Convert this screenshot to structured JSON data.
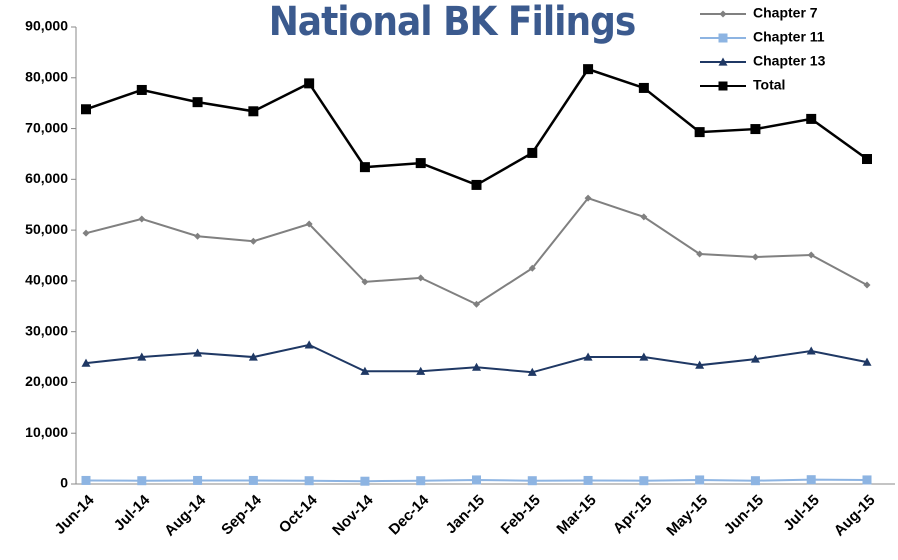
{
  "chart_data": {
    "type": "line",
    "title": "National BK Filings",
    "categories": [
      "Jun-14",
      "Jul-14",
      "Aug-14",
      "Sep-14",
      "Oct-14",
      "Nov-14",
      "Dec-14",
      "Jan-15",
      "Feb-15",
      "Mar-15",
      "Apr-15",
      "May-15",
      "Jun-15",
      "Jul-15",
      "Aug-15"
    ],
    "series": [
      {
        "name": "Chapter 7",
        "color": "#808080",
        "marker": "diamond",
        "values": [
          49400,
          52200,
          48800,
          47800,
          51200,
          39800,
          40600,
          35400,
          42500,
          56300,
          52600,
          45300,
          44700,
          45100,
          39200
        ]
      },
      {
        "name": "Chapter 11",
        "color": "#8db4e2",
        "marker": "square",
        "values": [
          700,
          650,
          700,
          700,
          650,
          550,
          650,
          800,
          650,
          700,
          650,
          800,
          650,
          850,
          800
        ]
      },
      {
        "name": "Chapter 13",
        "color": "#1f3864",
        "marker": "triangle",
        "values": [
          23800,
          25000,
          25800,
          25000,
          27400,
          22200,
          22200,
          23000,
          22000,
          25000,
          25000,
          23400,
          24600,
          26200,
          24000
        ]
      },
      {
        "name": "Total",
        "color": "#000000",
        "marker": "square",
        "values": [
          73800,
          77600,
          75200,
          73400,
          78900,
          62400,
          63200,
          58900,
          65200,
          81700,
          78000,
          69300,
          69900,
          71900,
          64000
        ]
      }
    ],
    "ylim": [
      0,
      90000
    ],
    "yticks": [
      {
        "value": 0,
        "label": "0"
      },
      {
        "value": 10000,
        "label": "10,000"
      },
      {
        "value": 20000,
        "label": "20,000"
      },
      {
        "value": 30000,
        "label": "30,000"
      },
      {
        "value": 40000,
        "label": "40,000"
      },
      {
        "value": 50000,
        "label": "50,000"
      },
      {
        "value": 60000,
        "label": "60,000"
      },
      {
        "value": 70000,
        "label": "70,000"
      },
      {
        "value": 80000,
        "label": "80,000"
      },
      {
        "value": 90000,
        "label": "90,000"
      }
    ],
    "grid": false,
    "legend": "top-right"
  }
}
